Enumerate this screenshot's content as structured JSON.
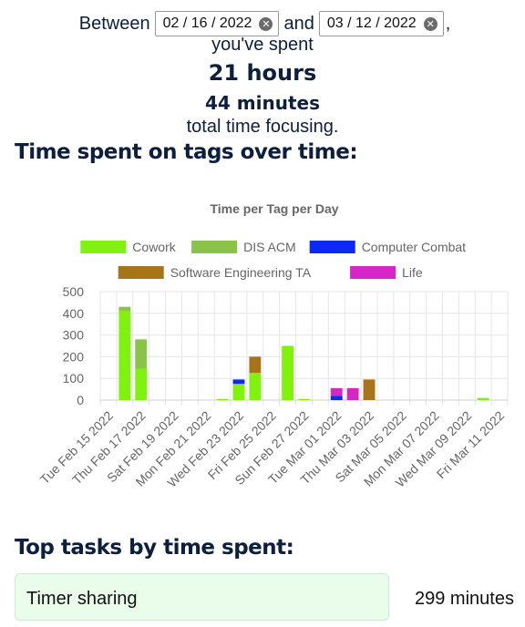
{
  "summary": {
    "between_label": "Between",
    "start_date": "02 / 16 / 2022",
    "and_label": "and",
    "end_date": "03 / 12 / 2022",
    "comma": ",",
    "spent_label": "you've spent",
    "hours": "21 hours",
    "minutes": "44 minutes",
    "total_label": "total time focusing."
  },
  "tags_section": {
    "heading": "Time spent on tags over time:"
  },
  "tasks_section": {
    "heading": "Top tasks by time spent:",
    "tasks": [
      {
        "name": "Timer sharing",
        "minutes": "299 minutes"
      }
    ]
  },
  "chart_data": {
    "type": "bar",
    "stacked": true,
    "title": "Time per Tag per Day",
    "xlabel": "",
    "ylabel": "",
    "ylim": [
      0,
      500
    ],
    "yticks": [
      0,
      100,
      200,
      300,
      400,
      500
    ],
    "grid": true,
    "legend_position": "top",
    "categories": [
      "Tue Feb 15 2022",
      "Wed Feb 16 2022",
      "Thu Feb 17 2022",
      "Fri Feb 18 2022",
      "Sat Feb 19 2022",
      "Sun Feb 20 2022",
      "Mon Feb 21 2022",
      "Tue Feb 22 2022",
      "Wed Feb 23 2022",
      "Thu Feb 24 2022",
      "Fri Feb 25 2022",
      "Sat Feb 26 2022",
      "Sun Feb 27 2022",
      "Mon Feb 28 2022",
      "Tue Mar 01 2022",
      "Wed Mar 02 2022",
      "Thu Mar 03 2022",
      "Fri Mar 04 2022",
      "Sat Mar 05 2022",
      "Sun Mar 06 2022",
      "Mon Mar 07 2022",
      "Tue Mar 08 2022",
      "Wed Mar 09 2022",
      "Thu Mar 10 2022",
      "Fri Mar 11 2022"
    ],
    "tick_labels": [
      "Tue Feb 15 2022",
      "Thu Feb 17 2022",
      "Sat Feb 19 2022",
      "Mon Feb 21 2022",
      "Wed Feb 23 2022",
      "Fri Feb 25 2022",
      "Sun Feb 27 2022",
      "Tue Mar 01 2022",
      "Thu Mar 03 2022",
      "Sat Mar 05 2022",
      "Mon Mar 07 2022",
      "Wed Mar 09 2022",
      "Fri Mar 11 2022"
    ],
    "series": [
      {
        "name": "Cowork",
        "color": "#80f20d",
        "values": [
          0,
          410,
          145,
          0,
          0,
          0,
          0,
          5,
          70,
          125,
          0,
          250,
          5,
          0,
          0,
          0,
          0,
          0,
          0,
          0,
          0,
          0,
          0,
          10,
          0
        ]
      },
      {
        "name": "DIS ACM",
        "color": "#8bc34a",
        "values": [
          0,
          20,
          135,
          0,
          0,
          0,
          0,
          0,
          5,
          0,
          0,
          0,
          0,
          0,
          0,
          0,
          0,
          0,
          0,
          0,
          0,
          0,
          0,
          0,
          0
        ]
      },
      {
        "name": "Computer Combat",
        "color": "#0d28f2",
        "values": [
          0,
          0,
          0,
          0,
          0,
          0,
          0,
          0,
          20,
          0,
          0,
          0,
          0,
          0,
          20,
          0,
          0,
          0,
          0,
          0,
          0,
          0,
          0,
          0,
          0
        ]
      },
      {
        "name": "Software Engineering TA",
        "color": "#a8741a",
        "values": [
          0,
          0,
          0,
          0,
          0,
          0,
          0,
          0,
          0,
          75,
          0,
          0,
          0,
          0,
          0,
          0,
          95,
          0,
          0,
          0,
          0,
          0,
          0,
          0,
          0
        ]
      },
      {
        "name": "Life",
        "color": "#d726c8",
        "values": [
          0,
          0,
          0,
          0,
          0,
          0,
          0,
          0,
          0,
          0,
          0,
          0,
          0,
          0,
          35,
          55,
          0,
          0,
          0,
          0,
          0,
          0,
          0,
          0,
          0
        ]
      }
    ]
  }
}
